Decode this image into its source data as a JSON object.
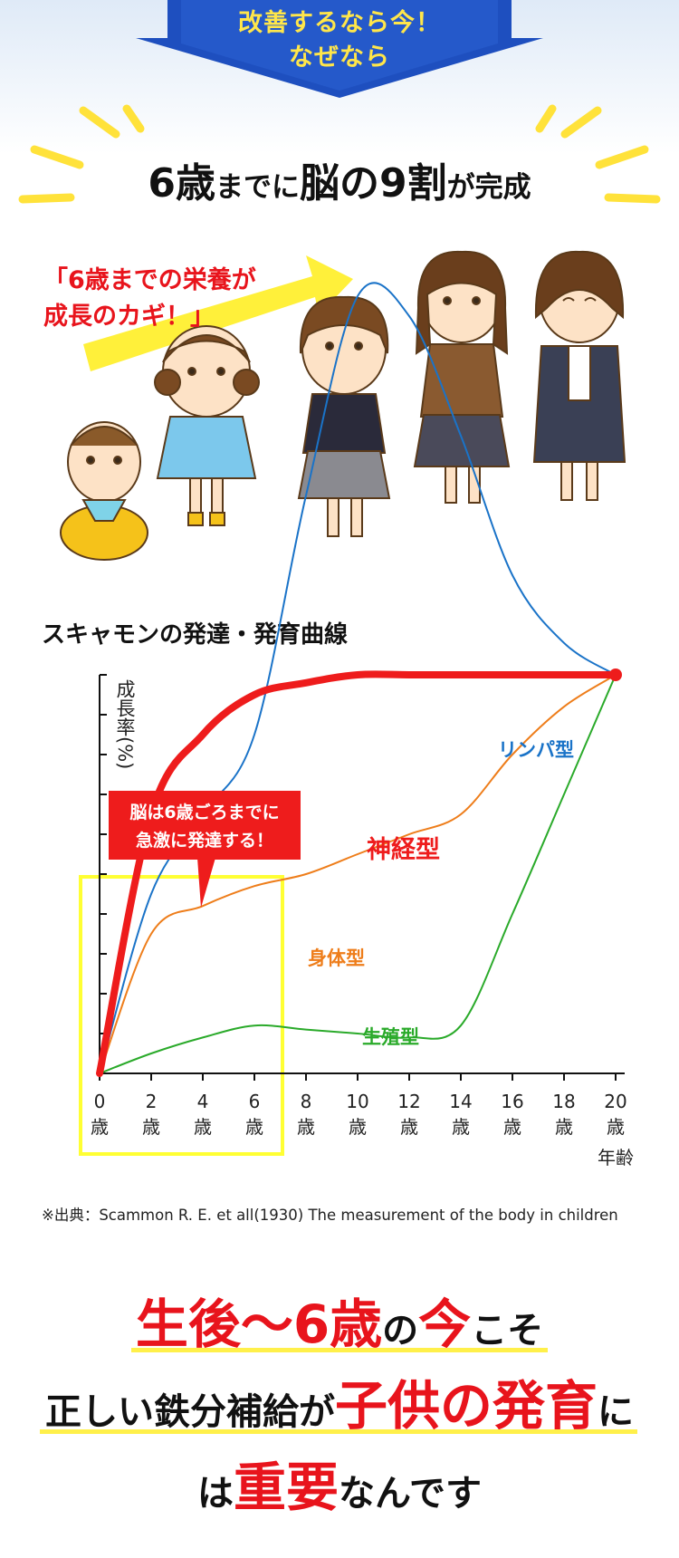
{
  "banner": {
    "line1": "改善するなら今！",
    "line2": "なぜなら"
  },
  "headline": {
    "p1": "6歳",
    "p2": "までに",
    "p3": "脳の9割",
    "p4": "が完成"
  },
  "callout": {
    "line1": "「6歳までの栄養が",
    "line2": "成長のカギ！」"
  },
  "chart_title": "スキャモンの発達・発育曲線",
  "chart_data": {
    "type": "line",
    "ylabel": "成長率(%)",
    "xlabel": "年齢",
    "x_ticks": [
      "0",
      "2",
      "4",
      "6",
      "8",
      "10",
      "12",
      "14",
      "16",
      "18",
      "20"
    ],
    "x_unit": "歳",
    "annotation": {
      "line1": "脳は6歳ごろまでに",
      "line2": "急激に発達する！"
    },
    "series": [
      {
        "name": "リンパ型",
        "color": "#1a73c8",
        "x": [
          0,
          2,
          4,
          6,
          8,
          10,
          12,
          14,
          16,
          18,
          20
        ],
        "values": [
          0,
          45,
          65,
          85,
          145,
          195,
          190,
          160,
          125,
          108,
          100
        ]
      },
      {
        "name": "神経型",
        "color": "#ee1c1c",
        "x": [
          0,
          2,
          4,
          6,
          8,
          10,
          12,
          14,
          16,
          18,
          20
        ],
        "values": [
          0,
          65,
          85,
          95,
          98,
          100,
          100,
          100,
          100,
          100,
          100
        ]
      },
      {
        "name": "身体型",
        "color": "#ee7d1a",
        "x": [
          0,
          2,
          4,
          6,
          8,
          10,
          12,
          14,
          16,
          18,
          20
        ],
        "values": [
          0,
          35,
          42,
          47,
          50,
          55,
          60,
          65,
          80,
          92,
          100
        ]
      },
      {
        "name": "生殖型",
        "color": "#2aaa2a",
        "x": [
          0,
          2,
          4,
          6,
          8,
          10,
          12,
          14,
          16,
          18,
          20
        ],
        "values": [
          0,
          5,
          9,
          12,
          11,
          10,
          9,
          12,
          40,
          70,
          100
        ]
      }
    ]
  },
  "source": "※出典：Scammon R. E. et all(1930)  The measurement of the body in children",
  "message": {
    "a1": "生後〜6歳",
    "a2": "の",
    "a3": "今",
    "a4": "こそ",
    "b1": "正しい鉄分補給が",
    "b2": "子供の発育",
    "b3": "に",
    "c1": "は",
    "c2": "重要",
    "c3": "なんです"
  },
  "colors": {
    "accent_red": "#e8141c",
    "banner_blue": "#2356c5",
    "highlight_yellow": "#fff04a",
    "box_yellow": "#ffff33"
  }
}
